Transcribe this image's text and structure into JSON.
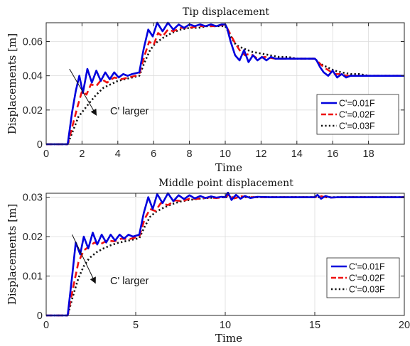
{
  "chart_data": [
    {
      "type": "line",
      "title": "Tip displacement",
      "xlabel": "Time",
      "ylabel": "Displacements [m]",
      "xlim": [
        0,
        20
      ],
      "ylim": [
        0,
        0.071
      ],
      "xticks": [
        0,
        2,
        4,
        6,
        8,
        10,
        12,
        14,
        16,
        18
      ],
      "xtick_labels": [
        "0",
        "2",
        "4",
        "6",
        "8",
        "10",
        "12",
        "14",
        "16",
        "18"
      ],
      "yticks": [
        0,
        0.02,
        0.04,
        0.06
      ],
      "ytick_labels": [
        "0",
        "0.02",
        "0.04",
        "0.06"
      ],
      "grid": true,
      "legend_position": "lower-right",
      "annotation": {
        "text": "C' larger",
        "arrow_from": [
          1.3,
          0.044
        ],
        "arrow_to": [
          2.8,
          0.017
        ]
      },
      "step_levels": [
        {
          "t": 0,
          "value": 0
        },
        {
          "t": 1.2,
          "value": 0.04
        },
        {
          "t": 5.2,
          "value": 0.07
        },
        {
          "t": 10,
          "value": 0.05
        },
        {
          "t": 15,
          "value": 0.04
        }
      ],
      "series": [
        {
          "name": "C'=0.01F",
          "color": "#0000dd",
          "dash": "",
          "x": [
            0,
            1.2,
            1.45,
            1.65,
            1.85,
            2.05,
            2.3,
            2.55,
            2.8,
            3.05,
            3.3,
            3.55,
            3.8,
            4.05,
            4.3,
            4.55,
            4.8,
            5.2,
            5.45,
            5.7,
            5.95,
            6.2,
            6.5,
            6.8,
            7.1,
            7.4,
            7.7,
            8.0,
            8.3,
            8.6,
            8.9,
            9.2,
            9.5,
            9.8,
            10.0,
            10.1,
            10.3,
            10.55,
            10.8,
            11.05,
            11.3,
            11.55,
            11.8,
            12.05,
            12.3,
            12.55,
            12.8,
            13.05,
            13.3,
            13.55,
            13.8,
            14.1,
            14.5,
            14.8,
            15.0,
            15.1,
            15.3,
            15.5,
            15.75,
            16.0,
            16.25,
            16.5,
            16.75,
            17.0,
            17.3,
            17.6,
            18.0,
            19.0,
            20.0
          ],
          "values": [
            0,
            0,
            0.019,
            0.031,
            0.04,
            0.03,
            0.044,
            0.036,
            0.043,
            0.037,
            0.042,
            0.038,
            0.042,
            0.039,
            0.041,
            0.04,
            0.041,
            0.042,
            0.056,
            0.067,
            0.063,
            0.071,
            0.066,
            0.071,
            0.067,
            0.07,
            0.068,
            0.07,
            0.069,
            0.07,
            0.069,
            0.07,
            0.069,
            0.07,
            0.07,
            0.068,
            0.06,
            0.052,
            0.049,
            0.055,
            0.048,
            0.052,
            0.049,
            0.051,
            0.049,
            0.051,
            0.05,
            0.05,
            0.05,
            0.05,
            0.05,
            0.05,
            0.05,
            0.05,
            0.05,
            0.049,
            0.045,
            0.042,
            0.04,
            0.043,
            0.039,
            0.041,
            0.039,
            0.04,
            0.04,
            0.04,
            0.04,
            0.04,
            0.04
          ]
        },
        {
          "name": "C'=0.02F",
          "color": "#ee1111",
          "dash": "9 5",
          "x": [
            0,
            1.2,
            1.5,
            1.75,
            2.0,
            2.25,
            2.5,
            2.8,
            3.1,
            3.4,
            3.8,
            4.2,
            4.6,
            5.0,
            5.2,
            5.5,
            5.75,
            6.0,
            6.25,
            6.5,
            6.8,
            7.1,
            7.5,
            8.0,
            8.5,
            9.0,
            9.5,
            10.0,
            10.2,
            10.5,
            10.8,
            11.1,
            11.4,
            11.8,
            12.2,
            12.8,
            13.5,
            14.2,
            15.0,
            15.2,
            15.5,
            15.8,
            16.1,
            16.4,
            16.8,
            17.3,
            18.0,
            19.0,
            20.0
          ],
          "values": [
            0,
            0,
            0.012,
            0.022,
            0.031,
            0.029,
            0.035,
            0.034,
            0.038,
            0.036,
            0.039,
            0.038,
            0.039,
            0.04,
            0.041,
            0.052,
            0.06,
            0.058,
            0.065,
            0.063,
            0.067,
            0.066,
            0.068,
            0.068,
            0.069,
            0.069,
            0.069,
            0.07,
            0.066,
            0.06,
            0.055,
            0.052,
            0.053,
            0.05,
            0.051,
            0.05,
            0.05,
            0.05,
            0.05,
            0.048,
            0.045,
            0.043,
            0.041,
            0.041,
            0.04,
            0.04,
            0.04,
            0.04,
            0.04
          ]
        },
        {
          "name": "C'=0.03F",
          "color": "#111111",
          "dash": "2.2 3.2",
          "x": [
            0,
            1.2,
            1.5,
            1.8,
            2.1,
            2.4,
            2.8,
            3.2,
            3.6,
            4.0,
            4.4,
            4.8,
            5.2,
            5.5,
            5.8,
            6.1,
            6.5,
            7.0,
            7.5,
            8.0,
            8.5,
            9.0,
            9.5,
            10.0,
            10.3,
            10.6,
            11.0,
            11.5,
            12.0,
            12.5,
            13.0,
            13.5,
            14.0,
            14.5,
            15.0,
            15.3,
            15.7,
            16.1,
            16.5,
            17.0,
            17.5,
            18.0,
            19.0,
            20.0
          ],
          "values": [
            0,
            0,
            0.008,
            0.016,
            0.02,
            0.024,
            0.029,
            0.033,
            0.035,
            0.037,
            0.038,
            0.039,
            0.04,
            0.048,
            0.055,
            0.059,
            0.062,
            0.065,
            0.067,
            0.068,
            0.068,
            0.069,
            0.069,
            0.069,
            0.063,
            0.058,
            0.056,
            0.054,
            0.053,
            0.052,
            0.051,
            0.051,
            0.05,
            0.05,
            0.05,
            0.047,
            0.045,
            0.043,
            0.042,
            0.041,
            0.041,
            0.04,
            0.04,
            0.04
          ]
        }
      ]
    },
    {
      "type": "line",
      "title": "Middle point displacement",
      "xlabel": "Time",
      "ylabel": "Displacements [m]",
      "xlim": [
        0,
        20
      ],
      "ylim": [
        0,
        0.031
      ],
      "xticks": [
        0,
        5,
        10,
        15,
        20
      ],
      "xtick_labels": [
        "0",
        "5",
        "10",
        "15",
        "20"
      ],
      "yticks": [
        0,
        0.01,
        0.02,
        0.03
      ],
      "ytick_labels": [
        "0",
        "0.01",
        "0.02",
        "0.03"
      ],
      "grid": true,
      "legend_position": "lower-right",
      "annotation": {
        "text": "C' larger",
        "arrow_from": [
          1.45,
          0.0205
        ],
        "arrow_to": [
          2.75,
          0.0082
        ]
      },
      "step_levels": [
        {
          "t": 0,
          "value": 0
        },
        {
          "t": 1.2,
          "value": 0.02
        },
        {
          "t": 5.2,
          "value": 0.03
        }
      ],
      "series": [
        {
          "name": "C'=0.01F",
          "color": "#0000dd",
          "dash": "",
          "x": [
            0,
            1.2,
            1.45,
            1.65,
            1.9,
            2.1,
            2.35,
            2.6,
            2.85,
            3.1,
            3.35,
            3.6,
            3.85,
            4.1,
            4.35,
            4.6,
            4.85,
            5.2,
            5.45,
            5.7,
            5.95,
            6.2,
            6.5,
            6.8,
            7.1,
            7.4,
            7.7,
            8.0,
            8.3,
            8.6,
            8.9,
            9.2,
            9.5,
            9.8,
            10.0,
            10.15,
            10.35,
            10.6,
            10.85,
            11.1,
            11.4,
            11.8,
            12.5,
            13.5,
            14.5,
            15.0,
            15.15,
            15.35,
            15.6,
            15.9,
            16.3,
            17.0,
            20.0
          ],
          "values": [
            0,
            0,
            0.01,
            0.0185,
            0.0155,
            0.02,
            0.017,
            0.021,
            0.018,
            0.0205,
            0.0185,
            0.0205,
            0.019,
            0.0205,
            0.0195,
            0.0205,
            0.02,
            0.0205,
            0.026,
            0.03,
            0.027,
            0.0308,
            0.0285,
            0.031,
            0.029,
            0.0305,
            0.0295,
            0.0305,
            0.0297,
            0.0303,
            0.0298,
            0.0302,
            0.0299,
            0.0301,
            0.03,
            0.0312,
            0.0293,
            0.0306,
            0.0296,
            0.0303,
            0.0298,
            0.0301,
            0.03,
            0.03,
            0.03,
            0.03,
            0.0306,
            0.0296,
            0.0303,
            0.0299,
            0.03,
            0.03,
            0.03
          ]
        },
        {
          "name": "C'=0.02F",
          "color": "#ee1111",
          "dash": "9 5",
          "x": [
            0,
            1.2,
            1.5,
            1.8,
            2.1,
            2.4,
            2.7,
            3.0,
            3.4,
            3.8,
            4.2,
            4.6,
            5.0,
            5.2,
            5.5,
            5.8,
            6.1,
            6.4,
            6.8,
            7.2,
            7.6,
            8.0,
            8.5,
            9.0,
            9.5,
            10.0,
            10.2,
            10.5,
            10.9,
            11.5,
            12.5,
            15.0,
            15.3,
            15.7,
            16.5,
            20.0
          ],
          "values": [
            0,
            0,
            0.007,
            0.0135,
            0.0165,
            0.0175,
            0.0185,
            0.018,
            0.019,
            0.0188,
            0.0195,
            0.0193,
            0.0198,
            0.02,
            0.0245,
            0.027,
            0.0265,
            0.0285,
            0.028,
            0.0292,
            0.029,
            0.0296,
            0.0296,
            0.0299,
            0.0298,
            0.03,
            0.0306,
            0.0297,
            0.0302,
            0.03,
            0.03,
            0.03,
            0.0303,
            0.0299,
            0.03,
            0.03
          ]
        },
        {
          "name": "C'=0.03F",
          "color": "#111111",
          "dash": "2.2 3.2",
          "x": [
            0,
            1.2,
            1.5,
            1.8,
            2.1,
            2.4,
            2.8,
            3.2,
            3.6,
            4.0,
            4.4,
            4.8,
            5.2,
            5.5,
            5.8,
            6.1,
            6.5,
            7.0,
            7.5,
            8.0,
            8.5,
            9.0,
            9.5,
            10.0,
            10.5,
            11.0,
            12.0,
            20.0
          ],
          "values": [
            0,
            0,
            0.005,
            0.0095,
            0.0125,
            0.0145,
            0.016,
            0.017,
            0.0178,
            0.0184,
            0.0188,
            0.0192,
            0.0196,
            0.0225,
            0.025,
            0.0262,
            0.0272,
            0.0282,
            0.0289,
            0.0293,
            0.0296,
            0.0298,
            0.0299,
            0.03,
            0.0301,
            0.03,
            0.03,
            0.03
          ]
        }
      ]
    }
  ]
}
